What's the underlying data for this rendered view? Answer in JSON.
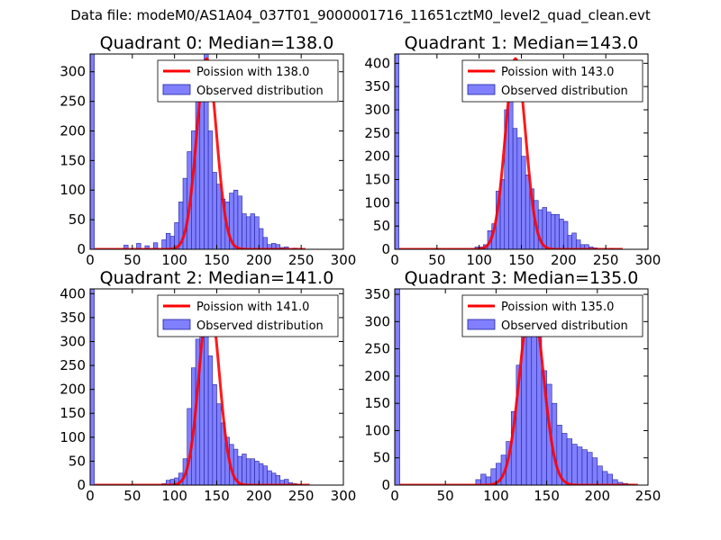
{
  "figure": {
    "suptitle": "Data file: modeM0/AS1A04_037T01_9000001716_11651cztM0_level2_quad_clean.evt",
    "colors": {
      "hist_fill": "#8080ff",
      "hist_edge": "#2020a0",
      "poisson": "#ff0000",
      "axes": "#000000"
    }
  },
  "chart_data": [
    {
      "type": "bar",
      "title": "Quadrant 0: Median=138.0",
      "xlim": [
        0,
        300
      ],
      "ylim": [
        0,
        330
      ],
      "xticks": [
        0,
        50,
        100,
        150,
        200,
        250,
        300
      ],
      "yticks": [
        0,
        50,
        100,
        150,
        200,
        250,
        300
      ],
      "legend": {
        "placement": "top-right",
        "entries": [
          "Poission with 138.0",
          "Observed distribution"
        ]
      },
      "histogram": {
        "bin_width": 5,
        "bins": [
          [
            0,
            330
          ],
          [
            40,
            7
          ],
          [
            55,
            10
          ],
          [
            65,
            6
          ],
          [
            75,
            11
          ],
          [
            85,
            16
          ],
          [
            90,
            27
          ],
          [
            95,
            22
          ],
          [
            100,
            45
          ],
          [
            105,
            80
          ],
          [
            110,
            120
          ],
          [
            115,
            165
          ],
          [
            120,
            200
          ],
          [
            125,
            285
          ],
          [
            130,
            300
          ],
          [
            135,
            330
          ],
          [
            140,
            200
          ],
          [
            145,
            130
          ],
          [
            150,
            110
          ],
          [
            155,
            85
          ],
          [
            160,
            80
          ],
          [
            165,
            95
          ],
          [
            170,
            100
          ],
          [
            175,
            90
          ],
          [
            180,
            60
          ],
          [
            185,
            55
          ],
          [
            190,
            60
          ],
          [
            195,
            55
          ],
          [
            200,
            35
          ],
          [
            205,
            20
          ],
          [
            210,
            8
          ],
          [
            215,
            10
          ],
          [
            220,
            8
          ],
          [
            225,
            3
          ],
          [
            230,
            4
          ],
          [
            240,
            2
          ]
        ]
      },
      "poisson": {
        "mean": 138.0,
        "peak": 322,
        "x_range": [
          5,
          255
        ]
      }
    },
    {
      "type": "bar",
      "title": "Quadrant 1: Median=143.0",
      "xlim": [
        0,
        300
      ],
      "ylim": [
        0,
        420
      ],
      "xticks": [
        0,
        50,
        100,
        150,
        200,
        250,
        300
      ],
      "yticks": [
        0,
        50,
        100,
        150,
        200,
        250,
        300,
        350,
        400
      ],
      "legend": {
        "placement": "top-right",
        "entries": [
          "Poission with 143.0",
          "Observed distribution"
        ]
      },
      "histogram": {
        "bin_width": 5,
        "bins": [
          [
            0,
            420
          ],
          [
            95,
            5
          ],
          [
            100,
            5
          ],
          [
            105,
            10
          ],
          [
            110,
            40
          ],
          [
            115,
            55
          ],
          [
            120,
            125
          ],
          [
            125,
            150
          ],
          [
            130,
            300
          ],
          [
            135,
            380
          ],
          [
            140,
            260
          ],
          [
            145,
            240
          ],
          [
            150,
            200
          ],
          [
            155,
            160
          ],
          [
            160,
            130
          ],
          [
            165,
            105
          ],
          [
            170,
            85
          ],
          [
            175,
            90
          ],
          [
            180,
            80
          ],
          [
            185,
            75
          ],
          [
            190,
            75
          ],
          [
            195,
            65
          ],
          [
            200,
            60
          ],
          [
            205,
            30
          ],
          [
            210,
            35
          ],
          [
            215,
            20
          ],
          [
            220,
            10
          ],
          [
            225,
            10
          ],
          [
            230,
            5
          ],
          [
            235,
            3
          ],
          [
            255,
            2
          ]
        ]
      },
      "poisson": {
        "mean": 143.0,
        "peak": 410,
        "x_range": [
          5,
          270
        ]
      }
    },
    {
      "type": "bar",
      "title": "Quadrant 2: Median=141.0",
      "xlim": [
        0,
        300
      ],
      "ylim": [
        0,
        410
      ],
      "xticks": [
        0,
        50,
        100,
        150,
        200,
        250,
        300
      ],
      "yticks": [
        0,
        50,
        100,
        150,
        200,
        250,
        300,
        350,
        400
      ],
      "legend": {
        "placement": "top-right",
        "entries": [
          "Poission with 141.0",
          "Observed distribution"
        ]
      },
      "histogram": {
        "bin_width": 5,
        "bins": [
          [
            0,
            410
          ],
          [
            85,
            3
          ],
          [
            90,
            10
          ],
          [
            95,
            12
          ],
          [
            100,
            15
          ],
          [
            105,
            25
          ],
          [
            110,
            55
          ],
          [
            115,
            160
          ],
          [
            120,
            245
          ],
          [
            125,
            305
          ],
          [
            130,
            320
          ],
          [
            135,
            340
          ],
          [
            140,
            270
          ],
          [
            145,
            210
          ],
          [
            150,
            170
          ],
          [
            155,
            130
          ],
          [
            160,
            100
          ],
          [
            165,
            85
          ],
          [
            170,
            75
          ],
          [
            175,
            60
          ],
          [
            180,
            65
          ],
          [
            185,
            55
          ],
          [
            190,
            55
          ],
          [
            195,
            50
          ],
          [
            200,
            45
          ],
          [
            205,
            40
          ],
          [
            210,
            30
          ],
          [
            215,
            25
          ],
          [
            220,
            20
          ],
          [
            225,
            10
          ],
          [
            230,
            12
          ],
          [
            235,
            5
          ],
          [
            240,
            3
          ],
          [
            245,
            2
          ]
        ]
      },
      "poisson": {
        "mean": 141.0,
        "peak": 390,
        "x_range": [
          5,
          260
        ]
      }
    },
    {
      "type": "bar",
      "title": "Quadrant 3: Median=135.0",
      "xlim": [
        0,
        250
      ],
      "ylim": [
        0,
        360
      ],
      "xticks": [
        0,
        50,
        100,
        150,
        200,
        250
      ],
      "yticks": [
        0,
        50,
        100,
        150,
        200,
        250,
        300,
        350
      ],
      "legend": {
        "placement": "top-right",
        "entries": [
          "Poission with 135.0",
          "Observed distribution"
        ]
      },
      "histogram": {
        "bin_width": 5,
        "bins": [
          [
            0,
            360
          ],
          [
            80,
            10
          ],
          [
            85,
            20
          ],
          [
            90,
            15
          ],
          [
            95,
            30
          ],
          [
            100,
            40
          ],
          [
            105,
            55
          ],
          [
            110,
            80
          ],
          [
            115,
            135
          ],
          [
            120,
            220
          ],
          [
            125,
            320
          ],
          [
            130,
            330
          ],
          [
            135,
            340
          ],
          [
            140,
            280
          ],
          [
            145,
            210
          ],
          [
            150,
            185
          ],
          [
            155,
            150
          ],
          [
            160,
            110
          ],
          [
            165,
            95
          ],
          [
            170,
            85
          ],
          [
            175,
            75
          ],
          [
            180,
            70
          ],
          [
            185,
            65
          ],
          [
            190,
            60
          ],
          [
            195,
            50
          ],
          [
            200,
            35
          ],
          [
            205,
            25
          ],
          [
            210,
            20
          ],
          [
            215,
            10
          ],
          [
            220,
            5
          ],
          [
            225,
            3
          ],
          [
            230,
            2
          ]
        ]
      },
      "poisson": {
        "mean": 135.0,
        "peak": 340,
        "x_range": [
          5,
          240
        ]
      }
    }
  ]
}
